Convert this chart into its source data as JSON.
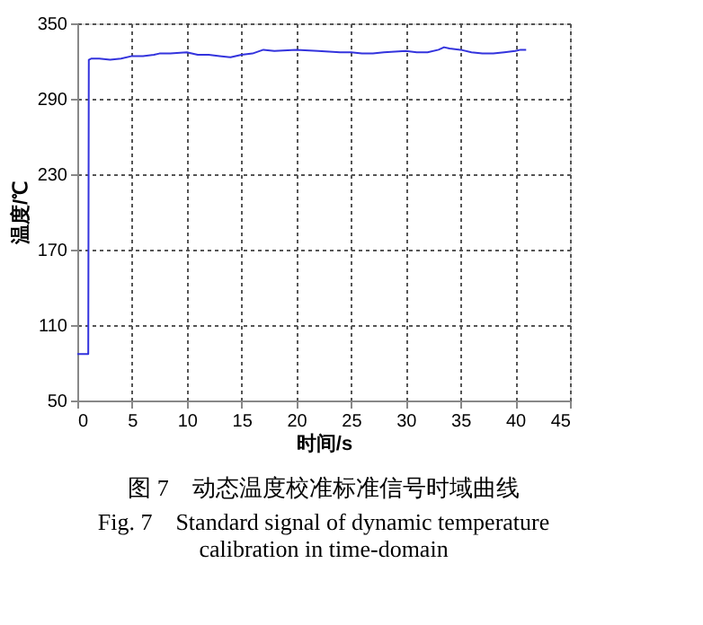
{
  "chart_data": {
    "type": "line",
    "xlabel": "时间/s",
    "ylabel": "温度/℃",
    "title": "图 7　动态温度校准标准信号时域曲线",
    "subtitle": "Fig. 7　Standard signal of dynamic temperature calibration in time-domain",
    "x": [
      0,
      0.3,
      0.6,
      0.9,
      1.0,
      1.05,
      1.3,
      2,
      3,
      4,
      5,
      6,
      7,
      7.5,
      8.5,
      10,
      11,
      12,
      13,
      14,
      15,
      16,
      17,
      18,
      20,
      22,
      24,
      25,
      26,
      27,
      28,
      30,
      31,
      32,
      33,
      33.5,
      34,
      35,
      36,
      37,
      38,
      39,
      40,
      40.5,
      41
    ],
    "series": [
      {
        "color": "#3333dd",
        "values": [
          87,
          87,
          87,
          87,
          87,
          321,
          322,
          322,
          321,
          322,
          324,
          324,
          325,
          326,
          326,
          327,
          325,
          325,
          324,
          323,
          325,
          326,
          329,
          328,
          329,
          328,
          327,
          327,
          326,
          326,
          327,
          328,
          327,
          327,
          329,
          331,
          330,
          329,
          327,
          326,
          326,
          327,
          328,
          329,
          329
        ]
      }
    ],
    "xlim": [
      0,
      45
    ],
    "xticks": [
      0,
      5,
      10,
      15,
      20,
      25,
      30,
      35,
      40,
      45
    ],
    "ylim": [
      50,
      350
    ],
    "yticks": [
      50,
      110,
      170,
      230,
      290,
      350
    ],
    "grid": true,
    "line_style": "solid",
    "marker": "none"
  }
}
